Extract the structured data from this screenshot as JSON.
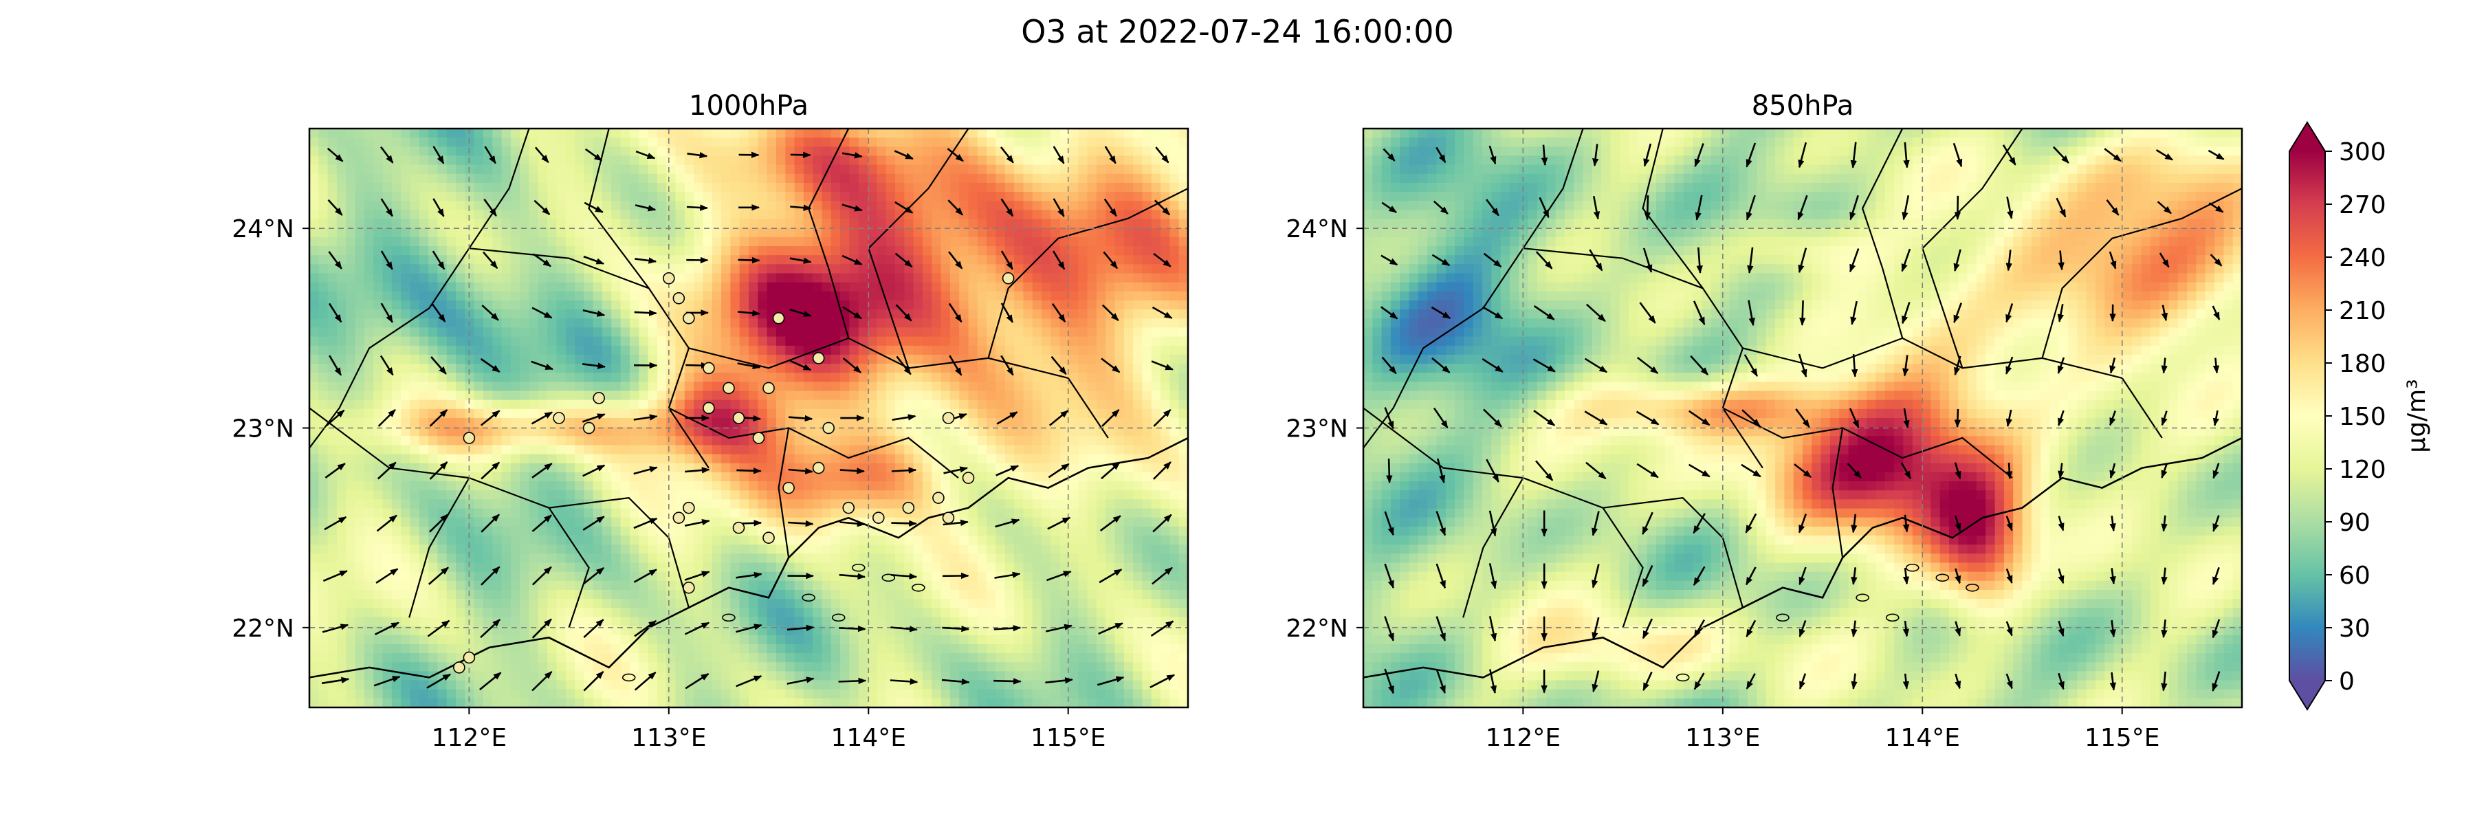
{
  "title": "O3 at 2022-07-24 16:00:00",
  "panels": [
    {
      "title": "1000hPa",
      "show_ylabels": true,
      "field": "surface",
      "stations": true
    },
    {
      "title": "850hPa",
      "show_ylabels": true,
      "field": "upper",
      "stations": false
    }
  ],
  "map": {
    "lon_range": [
      111.2,
      115.6
    ],
    "lat_range": [
      21.6,
      24.5
    ],
    "lon_ticks": [
      112,
      113,
      114,
      115
    ],
    "lon_tick_labels": [
      "112°E",
      "113°E",
      "114°E",
      "115°E"
    ],
    "lat_ticks": [
      22,
      23,
      24
    ],
    "lat_tick_labels": [
      "22°N",
      "23°N",
      "24°N"
    ],
    "gridlines": true
  },
  "colorbar": {
    "min": 0,
    "max": 300,
    "ticks": [
      0,
      30,
      60,
      90,
      120,
      150,
      180,
      210,
      240,
      270,
      300
    ],
    "unit_label": "μg/m³",
    "colormap": "Spectral_r",
    "extend": "both"
  },
  "colors": {
    "cmap_stops": [
      "#5e4fa2",
      "#3288bd",
      "#66c2a5",
      "#abdda4",
      "#e6f598",
      "#ffffbf",
      "#fee08b",
      "#fdae61",
      "#f46d43",
      "#d53e4f",
      "#9e0142"
    ],
    "station_fill": "#f3e9a8"
  }
}
